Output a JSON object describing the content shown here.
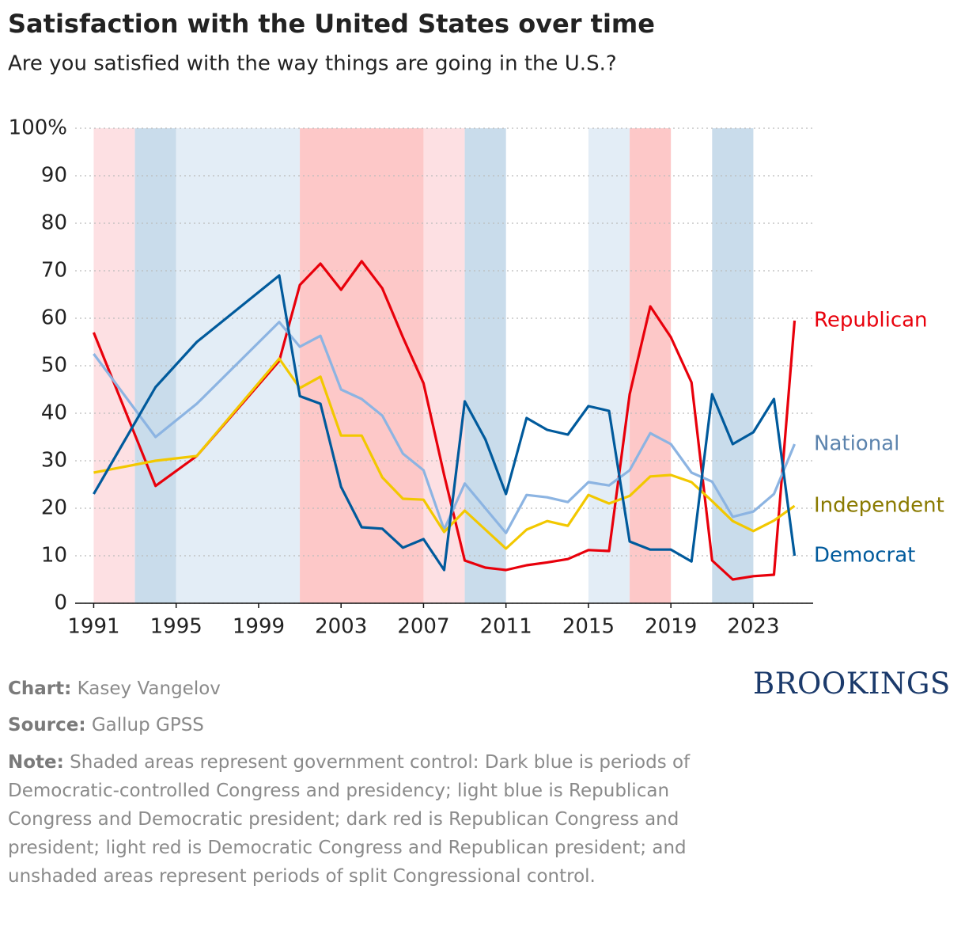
{
  "chart_data": {
    "type": "line",
    "title": "Satisfaction with the United States over time",
    "subtitle": "Are you satisfied with the way things are going in the U.S.?",
    "x": [
      1991,
      1994,
      1996,
      2000,
      2001,
      2002,
      2003,
      2004,
      2005,
      2006,
      2007,
      2008,
      2009,
      2010,
      2011,
      2012,
      2013,
      2014,
      2015,
      2016,
      2017,
      2018,
      2019,
      2020,
      2021,
      2022,
      2023,
      2024,
      2025
    ],
    "series": [
      {
        "name": "Republican",
        "color": "#e8000b",
        "label_color": "#e8000b",
        "values": [
          57,
          24.7,
          31,
          51,
          67,
          71.5,
          66,
          72,
          66.3,
          56,
          46.3,
          27,
          9,
          7.5,
          7,
          8,
          8.6,
          9.3,
          11.2,
          11,
          44,
          62.5,
          56,
          46.5,
          9,
          5,
          5.7,
          6,
          59.5
        ]
      },
      {
        "name": "National",
        "color": "#8cb4e2",
        "label_color": "#5b83ad",
        "values": [
          52.5,
          35,
          42,
          59.2,
          54,
          56.3,
          45,
          43,
          39.5,
          31.5,
          28,
          15.5,
          25.2,
          20,
          14.8,
          22.8,
          22.3,
          21.3,
          25.5,
          24.8,
          28,
          35.8,
          33.5,
          27.5,
          25.6,
          18.2,
          19.3,
          23,
          33.5
        ]
      },
      {
        "name": "Independent",
        "color": "#f2c800",
        "label_color": "#8a7a00",
        "values": [
          27.5,
          30,
          31,
          51.5,
          45.3,
          47.7,
          35.3,
          35.3,
          26.5,
          22,
          21.8,
          15,
          19.5,
          15.5,
          11.5,
          15.5,
          17.3,
          16.3,
          22.8,
          21,
          22.6,
          26.7,
          27,
          25.5,
          21.5,
          17.3,
          15.2,
          17.4,
          20.5
        ]
      },
      {
        "name": "Democrat",
        "color": "#005a9c",
        "label_color": "#005a9c",
        "values": [
          23,
          45.5,
          55,
          69,
          43.6,
          42,
          24.5,
          16,
          15.7,
          11.7,
          13.5,
          7,
          42.5,
          34.5,
          23,
          39,
          36.5,
          35.5,
          41.5,
          40.5,
          13,
          11.3,
          11.3,
          8.8,
          44,
          33.5,
          36,
          43,
          10
        ]
      }
    ],
    "shading": [
      {
        "start": 1991,
        "end": 1993,
        "color": "#fde0e3"
      },
      {
        "start": 1993,
        "end": 1995,
        "color": "#c9dceb"
      },
      {
        "start": 1995,
        "end": 2001,
        "color": "#e3edf6"
      },
      {
        "start": 2001,
        "end": 2007,
        "color": "#fdc8c8"
      },
      {
        "start": 2007,
        "end": 2009,
        "color": "#fde0e3"
      },
      {
        "start": 2009,
        "end": 2011,
        "color": "#c9dceb"
      },
      {
        "start": 2015,
        "end": 2017,
        "color": "#e3edf6"
      },
      {
        "start": 2017,
        "end": 2019,
        "color": "#fdc8c8"
      },
      {
        "start": 2021,
        "end": 2023,
        "color": "#c9dceb"
      }
    ],
    "xlim": [
      1990.1,
      2025.9
    ],
    "xticks": [
      1991,
      1995,
      1999,
      2003,
      2007,
      2011,
      2015,
      2019,
      2023
    ],
    "ylim": [
      0,
      100
    ],
    "yticks": [
      0,
      10,
      20,
      30,
      40,
      50,
      60,
      70,
      80,
      90,
      {
        "value": 100,
        "label": "100%"
      }
    ],
    "grid": true
  },
  "credits": [
    {
      "label": "Chart:",
      "text": "Kasey Vangelov"
    },
    {
      "label": "Source:",
      "text": "Gallup GPSS"
    }
  ],
  "note": {
    "label": "Note:",
    "text": "Shaded areas represent government control: Dark blue is periods of Democratic-controlled Congress and presidency; light blue is Republican Congress and Democratic president; dark red is Republican Congress and president; light red is Democratic Congress and Republican president; and unshaded areas represent periods of split Congressional control."
  },
  "logo": "BROOKINGS"
}
